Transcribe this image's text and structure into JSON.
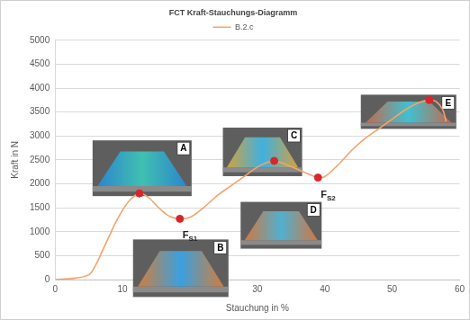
{
  "chart_data": {
    "type": "line",
    "title": "FCT Kraft-Stauchungs-Diagramm",
    "x_label": "Stauchung in %",
    "y_label": "Kraft in N",
    "xlim": [
      0,
      60
    ],
    "xticks": [
      0,
      10,
      20,
      30,
      40,
      50,
      60
    ],
    "ylim": [
      0,
      5000
    ],
    "yticks": [
      0,
      500,
      1000,
      1500,
      2000,
      2500,
      3000,
      3500,
      4000,
      4500,
      5000
    ],
    "grid": "y",
    "legend": "top",
    "series": [
      {
        "name": "B.2.c",
        "color": "#f5a36a",
        "marker": "none",
        "line_style": "solid",
        "x": [
          0,
          3,
          5,
          6,
          7,
          8,
          9,
          10,
          11,
          12,
          12.5,
          13,
          14,
          15,
          16,
          17,
          18.5,
          20,
          22,
          24,
          26,
          28,
          30,
          31.5,
          32.5,
          34,
          36,
          38,
          39,
          40,
          42,
          44,
          46,
          48,
          50,
          52,
          54,
          55.5,
          56.5,
          57.5,
          58
        ],
        "values": [
          0,
          30,
          100,
          300,
          600,
          900,
          1200,
          1450,
          1650,
          1770,
          1800,
          1790,
          1700,
          1550,
          1420,
          1320,
          1270,
          1300,
          1500,
          1750,
          1950,
          2150,
          2350,
          2450,
          2480,
          2420,
          2300,
          2180,
          2130,
          2150,
          2400,
          2700,
          2950,
          3150,
          3350,
          3550,
          3700,
          3750,
          3720,
          3550,
          3300
        ]
      }
    ],
    "points": {
      "color": "#d9262a",
      "marker": "circle",
      "items": [
        {
          "x": 12.5,
          "y": 1800,
          "label": "A"
        },
        {
          "x": 18.5,
          "y": 1270,
          "label": "B"
        },
        {
          "x": 32.5,
          "y": 2480,
          "label": "C"
        },
        {
          "x": 39,
          "y": 2130,
          "label": "D"
        },
        {
          "x": 55.5,
          "y": 3750,
          "label": "E"
        }
      ]
    },
    "annotations": [
      {
        "x": 18.5,
        "y": 1270,
        "text": "F",
        "subscript": "S1"
      },
      {
        "x": 39,
        "y": 2130,
        "text": "F",
        "subscript": "S2"
      }
    ]
  }
}
